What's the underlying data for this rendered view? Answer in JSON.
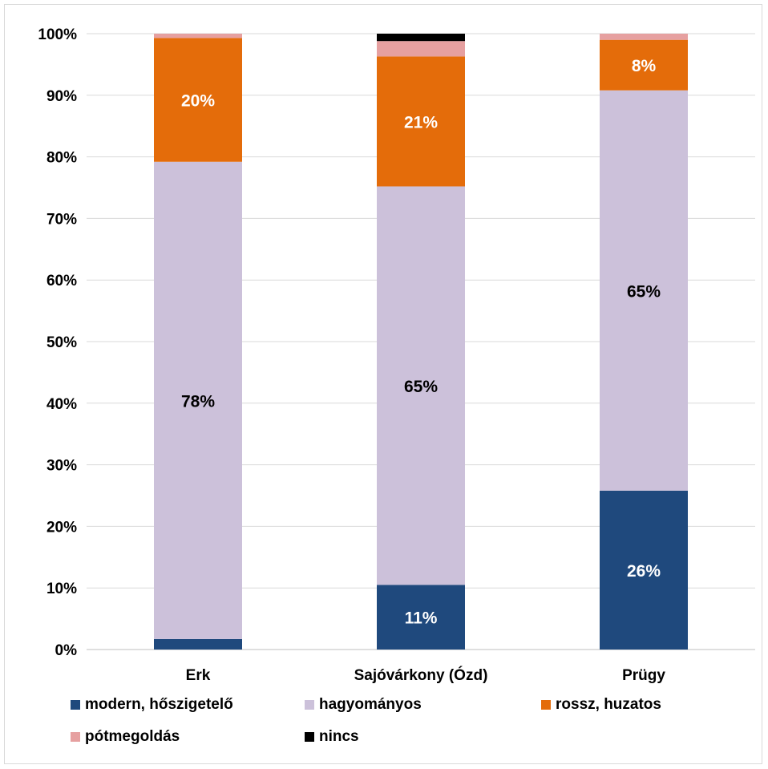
{
  "chart_data": {
    "type": "bar",
    "stacked": "percent",
    "categories": [
      "Erk",
      "Sajóvárkony (Ózd)",
      "Prügy"
    ],
    "series": [
      {
        "name": "modern, hőszigetelő",
        "color": "#1f497d",
        "values": [
          1.7,
          10.5,
          25.8
        ],
        "labels": [
          "",
          "11%",
          "26%"
        ],
        "label_color": "#ffffff"
      },
      {
        "name": "hagyományos",
        "color": "#ccc1da",
        "values": [
          77.5,
          64.7,
          65.0
        ],
        "labels": [
          "78%",
          "65%",
          "65%"
        ],
        "label_color": "#000000"
      },
      {
        "name": "rossz, huzatos",
        "color": "#e46c0a",
        "values": [
          20.1,
          21.1,
          8.2
        ],
        "labels": [
          "20%",
          "21%",
          "8%"
        ],
        "label_color": "#ffffff"
      },
      {
        "name": "pótmegoldás",
        "color": "#e6a0a0",
        "values": [
          0.7,
          2.5,
          1.0
        ],
        "labels": [
          "",
          "",
          ""
        ],
        "label_color": "#000000"
      },
      {
        "name": "nincs",
        "color": "#000000",
        "values": [
          0.0,
          1.2,
          0.0
        ],
        "labels": [
          "",
          "",
          ""
        ],
        "label_color": "#ffffff"
      }
    ],
    "yticks": [
      "0%",
      "10%",
      "20%",
      "30%",
      "40%",
      "50%",
      "60%",
      "70%",
      "80%",
      "90%",
      "100%"
    ],
    "ylim": [
      0,
      100
    ],
    "grid": true,
    "legend_position": "bottom"
  }
}
